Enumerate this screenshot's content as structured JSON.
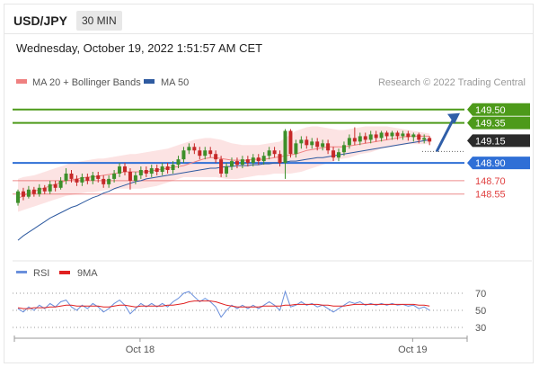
{
  "header": {
    "symbol": "USD/JPY",
    "timeframe": "30 MIN",
    "datetime": "Wednesday, October 19, 2022 1:51:57 AM CET"
  },
  "chart_data": [
    {
      "type": "candlestick",
      "legend": [
        {
          "label": "MA 20 + Bollinger Bands",
          "color": "#ef8080"
        },
        {
          "label": "MA 50",
          "color": "#2e5aa0"
        }
      ],
      "credit": "Research © 2022 Trading Central",
      "ylim": [
        147.9,
        149.72
      ],
      "levels": [
        {
          "value": 149.5,
          "label": "149.50",
          "color": "#4d9a1a",
          "style": "badge"
        },
        {
          "value": 149.35,
          "label": "149.35",
          "color": "#4d9a1a",
          "style": "badge"
        },
        {
          "value": 149.15,
          "label": "149.15",
          "color": "#333333",
          "style": "current"
        },
        {
          "value": 148.9,
          "label": "148.90",
          "color": "#2f6fd6",
          "style": "badge"
        },
        {
          "value": 148.7,
          "label": "148.70",
          "color": "#e04040",
          "style": "text"
        },
        {
          "value": 148.55,
          "label": "148.55",
          "color": "#e04040",
          "style": "text"
        }
      ],
      "candles": [
        [
          148.45,
          148.58,
          148.42,
          148.6
        ],
        [
          148.58,
          148.52,
          148.48,
          148.62
        ],
        [
          148.52,
          148.6,
          148.5,
          148.64
        ],
        [
          148.6,
          148.55,
          148.52,
          148.63
        ],
        [
          148.55,
          148.62,
          148.52,
          148.66
        ],
        [
          148.62,
          148.58,
          148.55,
          148.65
        ],
        [
          148.58,
          148.66,
          148.55,
          148.7
        ],
        [
          148.66,
          148.62,
          148.58,
          148.7
        ],
        [
          148.62,
          148.7,
          148.6,
          148.74
        ],
        [
          148.7,
          148.78,
          148.66,
          148.84
        ],
        [
          148.78,
          148.72,
          148.68,
          148.82
        ],
        [
          148.72,
          148.68,
          148.64,
          148.76
        ],
        [
          148.68,
          148.74,
          148.64,
          148.78
        ],
        [
          148.74,
          148.7,
          148.66,
          148.78
        ],
        [
          148.7,
          148.76,
          148.66,
          148.8
        ],
        [
          148.76,
          148.72,
          148.68,
          148.8
        ],
        [
          148.72,
          148.66,
          148.62,
          148.76
        ],
        [
          148.66,
          148.72,
          148.62,
          148.76
        ],
        [
          148.72,
          148.78,
          148.68,
          148.82
        ],
        [
          148.78,
          148.86,
          148.74,
          148.9
        ],
        [
          148.86,
          148.8,
          148.76,
          148.9
        ],
        [
          148.8,
          148.7,
          148.6,
          148.84
        ],
        [
          148.7,
          148.76,
          148.66,
          148.8
        ],
        [
          148.76,
          148.82,
          148.72,
          148.86
        ],
        [
          148.82,
          148.78,
          148.74,
          148.86
        ],
        [
          148.78,
          148.84,
          148.74,
          148.88
        ],
        [
          148.84,
          148.8,
          148.76,
          148.88
        ],
        [
          148.8,
          148.86,
          148.76,
          148.9
        ],
        [
          148.86,
          148.82,
          148.78,
          148.9
        ],
        [
          148.82,
          148.88,
          148.78,
          148.92
        ],
        [
          148.88,
          148.94,
          148.84,
          148.98
        ],
        [
          148.94,
          149.04,
          148.9,
          149.08
        ],
        [
          149.04,
          149.08,
          149.0,
          149.12
        ],
        [
          149.08,
          149.04,
          149.0,
          149.12
        ],
        [
          149.04,
          148.98,
          148.94,
          149.08
        ],
        [
          148.98,
          149.04,
          148.94,
          149.08
        ],
        [
          149.04,
          149.0,
          148.96,
          149.08
        ],
        [
          149.0,
          148.94,
          148.9,
          149.04
        ],
        [
          148.94,
          148.78,
          148.74,
          148.98
        ],
        [
          148.78,
          148.86,
          148.74,
          148.9
        ],
        [
          148.86,
          148.92,
          148.82,
          148.96
        ],
        [
          148.92,
          148.88,
          148.84,
          148.96
        ],
        [
          148.88,
          148.94,
          148.84,
          148.98
        ],
        [
          148.94,
          148.9,
          148.86,
          148.98
        ],
        [
          148.9,
          148.96,
          148.86,
          149.0
        ],
        [
          148.96,
          148.92,
          148.88,
          149.0
        ],
        [
          148.92,
          148.98,
          148.88,
          149.02
        ],
        [
          148.98,
          149.04,
          148.94,
          149.08
        ],
        [
          149.04,
          149.0,
          148.96,
          149.08
        ],
        [
          149.0,
          148.9,
          148.86,
          149.04
        ],
        [
          148.9,
          149.26,
          148.72,
          149.28
        ],
        [
          149.26,
          149.0,
          148.96,
          149.28
        ],
        [
          149.0,
          149.12,
          148.96,
          149.16
        ],
        [
          149.12,
          149.16,
          149.06,
          149.2
        ],
        [
          149.16,
          149.1,
          149.06,
          149.2
        ],
        [
          149.1,
          149.14,
          149.06,
          149.18
        ],
        [
          149.14,
          149.08,
          149.04,
          149.18
        ],
        [
          149.08,
          149.12,
          149.04,
          149.16
        ],
        [
          149.12,
          149.04,
          149.0,
          149.16
        ],
        [
          149.04,
          148.96,
          148.92,
          149.08
        ],
        [
          148.96,
          149.02,
          148.92,
          149.06
        ],
        [
          149.02,
          149.1,
          148.98,
          149.14
        ],
        [
          149.1,
          149.18,
          149.06,
          149.22
        ],
        [
          149.18,
          149.14,
          149.1,
          149.3
        ],
        [
          149.14,
          149.2,
          149.1,
          149.24
        ],
        [
          149.2,
          149.16,
          149.12,
          149.24
        ],
        [
          149.16,
          149.22,
          149.12,
          149.26
        ],
        [
          149.22,
          149.18,
          149.14,
          149.26
        ],
        [
          149.18,
          149.24,
          149.14,
          149.26
        ],
        [
          149.24,
          149.2,
          149.16,
          149.26
        ],
        [
          149.2,
          149.24,
          149.16,
          149.26
        ],
        [
          149.24,
          149.2,
          149.16,
          149.26
        ],
        [
          149.2,
          149.23,
          149.16,
          149.26
        ],
        [
          149.23,
          149.19,
          149.15,
          149.26
        ],
        [
          149.19,
          149.22,
          149.14,
          149.24
        ],
        [
          149.22,
          149.16,
          149.12,
          149.24
        ],
        [
          149.16,
          149.18,
          149.12,
          149.22
        ],
        [
          149.18,
          149.14,
          149.1,
          149.2
        ]
      ],
      "ma20": [
        148.5,
        148.53,
        148.56,
        148.58,
        148.6,
        148.62,
        148.64,
        148.66,
        148.68,
        148.7,
        148.71,
        148.72,
        148.73,
        148.74,
        148.74,
        148.75,
        148.76,
        148.77,
        148.78,
        148.79,
        148.8,
        148.8,
        148.8,
        148.8,
        148.8,
        148.81,
        148.82,
        148.83,
        148.84,
        148.85,
        148.86,
        148.87,
        148.89,
        148.91,
        148.93,
        148.95,
        148.96,
        148.96,
        148.95,
        148.94,
        148.93,
        148.93,
        148.93,
        148.93,
        148.94,
        148.94,
        148.94,
        148.95,
        148.96,
        148.97,
        148.98,
        148.99,
        149.0,
        149.02,
        149.04,
        149.05,
        149.06,
        149.07,
        149.08,
        149.08,
        149.08,
        149.08,
        149.09,
        149.1,
        149.11,
        149.12,
        149.13,
        149.14,
        149.15,
        149.16,
        149.17,
        149.18,
        149.19,
        149.2,
        149.2,
        149.2,
        149.2,
        149.2
      ],
      "bb_upper": [
        148.72,
        148.74,
        148.75,
        148.76,
        148.78,
        148.8,
        148.82,
        148.84,
        148.86,
        148.88,
        148.9,
        148.91,
        148.92,
        148.93,
        148.94,
        148.95,
        148.95,
        148.96,
        148.97,
        148.98,
        148.99,
        149.0,
        149.0,
        149.01,
        149.02,
        149.03,
        149.04,
        149.05,
        149.06,
        149.08,
        149.1,
        149.12,
        149.14,
        149.16,
        149.17,
        149.18,
        149.18,
        149.17,
        149.16,
        149.14,
        149.12,
        149.11,
        149.1,
        149.1,
        149.1,
        149.1,
        149.11,
        149.12,
        149.13,
        149.14,
        149.18,
        149.22,
        149.26,
        149.28,
        149.3,
        149.31,
        149.31,
        149.3,
        149.29,
        149.28,
        149.27,
        149.27,
        149.28,
        149.29,
        149.3,
        149.31,
        149.31,
        149.31,
        149.31,
        149.31,
        149.3,
        149.29,
        149.28,
        149.27,
        149.26,
        149.25,
        149.24,
        149.23
      ],
      "bb_lower": [
        148.35,
        148.37,
        148.39,
        148.41,
        148.43,
        148.45,
        148.47,
        148.49,
        148.51,
        148.53,
        148.54,
        148.55,
        148.56,
        148.57,
        148.57,
        148.58,
        148.59,
        148.6,
        148.6,
        148.61,
        148.61,
        148.61,
        148.61,
        148.61,
        148.62,
        148.63,
        148.64,
        148.66,
        148.68,
        148.7,
        148.72,
        148.74,
        148.74,
        148.74,
        148.74,
        148.74,
        148.74,
        148.74,
        148.73,
        148.72,
        148.72,
        148.72,
        148.73,
        148.74,
        148.75,
        148.76,
        148.76,
        148.77,
        148.78,
        148.78,
        148.78,
        148.78,
        148.79,
        148.8,
        148.82,
        148.84,
        148.86,
        148.88,
        148.9,
        148.92,
        148.94,
        148.95,
        148.96,
        148.98,
        149.0,
        149.01,
        149.02,
        149.04,
        149.06,
        149.07,
        149.08,
        149.09,
        149.1,
        149.11,
        149.11,
        149.11,
        149.11,
        149.12
      ],
      "ma50": [
        148.03,
        148.08,
        148.12,
        148.16,
        148.2,
        148.24,
        148.28,
        148.31,
        148.34,
        148.37,
        148.4,
        148.42,
        148.45,
        148.48,
        148.51,
        148.53,
        148.56,
        148.58,
        148.61,
        148.63,
        148.65,
        148.67,
        148.69,
        148.7,
        148.72,
        148.73,
        148.74,
        148.75,
        148.76,
        148.77,
        148.78,
        148.79,
        148.8,
        148.81,
        148.82,
        148.83,
        148.84,
        148.84,
        148.85,
        148.86,
        148.86,
        148.87,
        148.87,
        148.87,
        148.88,
        148.88,
        148.89,
        148.89,
        148.9,
        148.9,
        148.91,
        148.92,
        148.92,
        148.93,
        148.94,
        148.95,
        148.96,
        148.96,
        148.97,
        148.98,
        148.99,
        149.0,
        149.01,
        149.02,
        149.03,
        149.04,
        149.05,
        149.06,
        149.07,
        149.08,
        149.09,
        149.1,
        149.11,
        149.12,
        149.13,
        149.14,
        149.15,
        149.16
      ],
      "forecast_arrow": {
        "from": 149.15,
        "to": 149.5
      }
    },
    {
      "type": "line",
      "title": "",
      "legend": [
        {
          "label": "RSI",
          "color": "#6a8fdc"
        },
        {
          "label": "9MA",
          "color": "#e02020"
        }
      ],
      "y_ticks": [
        {
          "value": 70,
          "label": "70"
        },
        {
          "value": 50,
          "label": "50"
        },
        {
          "value": 30,
          "label": "30"
        }
      ],
      "ylim": [
        25,
        80
      ],
      "x_ticks": [
        {
          "index": 22,
          "label": "Oct 18"
        },
        {
          "index": 73,
          "label": "Oct 19"
        }
      ],
      "rsi": [
        52,
        48,
        54,
        50,
        56,
        52,
        58,
        54,
        60,
        62,
        54,
        50,
        56,
        52,
        58,
        54,
        48,
        52,
        58,
        62,
        56,
        46,
        52,
        58,
        54,
        58,
        54,
        58,
        54,
        60,
        64,
        70,
        72,
        66,
        60,
        64,
        60,
        54,
        42,
        50,
        56,
        52,
        56,
        52,
        56,
        52,
        56,
        60,
        56,
        50,
        72,
        54,
        56,
        60,
        56,
        58,
        54,
        56,
        52,
        48,
        52,
        56,
        60,
        58,
        60,
        56,
        58,
        56,
        58,
        56,
        58,
        56,
        57,
        55,
        56,
        52,
        54,
        50
      ],
      "rsi_ma": [
        53,
        52,
        52,
        53,
        53,
        53,
        54,
        54,
        55,
        56,
        56,
        55,
        55,
        55,
        55,
        55,
        54,
        54,
        55,
        56,
        56,
        55,
        54,
        55,
        55,
        55,
        55,
        55,
        56,
        56,
        57,
        58,
        60,
        61,
        61,
        61,
        61,
        60,
        58,
        56,
        55,
        54,
        54,
        54,
        54,
        54,
        55,
        55,
        55,
        55,
        56,
        56,
        57,
        57,
        57,
        57,
        57,
        56,
        56,
        55,
        55,
        55,
        56,
        57,
        57,
        57,
        57,
        57,
        57,
        57,
        57,
        57,
        57,
        57,
        57,
        56,
        56,
        55
      ]
    }
  ]
}
